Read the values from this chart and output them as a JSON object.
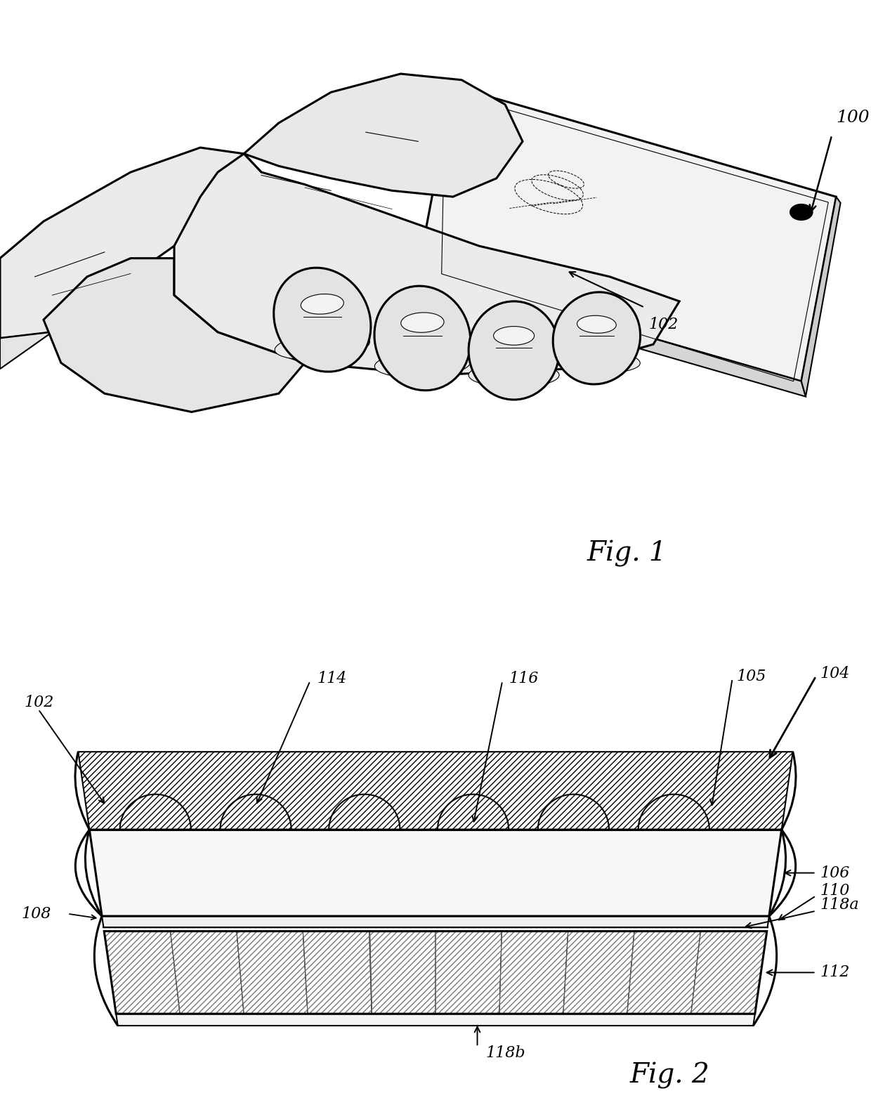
{
  "fig1_label": "Fig. 1",
  "fig2_label": "Fig. 2",
  "bg_color": "#ffffff",
  "line_color": "#000000",
  "label_100": "100",
  "label_102_fig1": "102",
  "label_102_fig2": "102",
  "label_104": "104",
  "label_105": "105",
  "label_106": "106",
  "label_108": "108",
  "label_110": "110",
  "label_112": "112",
  "label_114": "114",
  "label_116": "116",
  "label_118a": "118a",
  "label_118b": "118b",
  "font_size_label": 16,
  "font_size_fig": 28
}
